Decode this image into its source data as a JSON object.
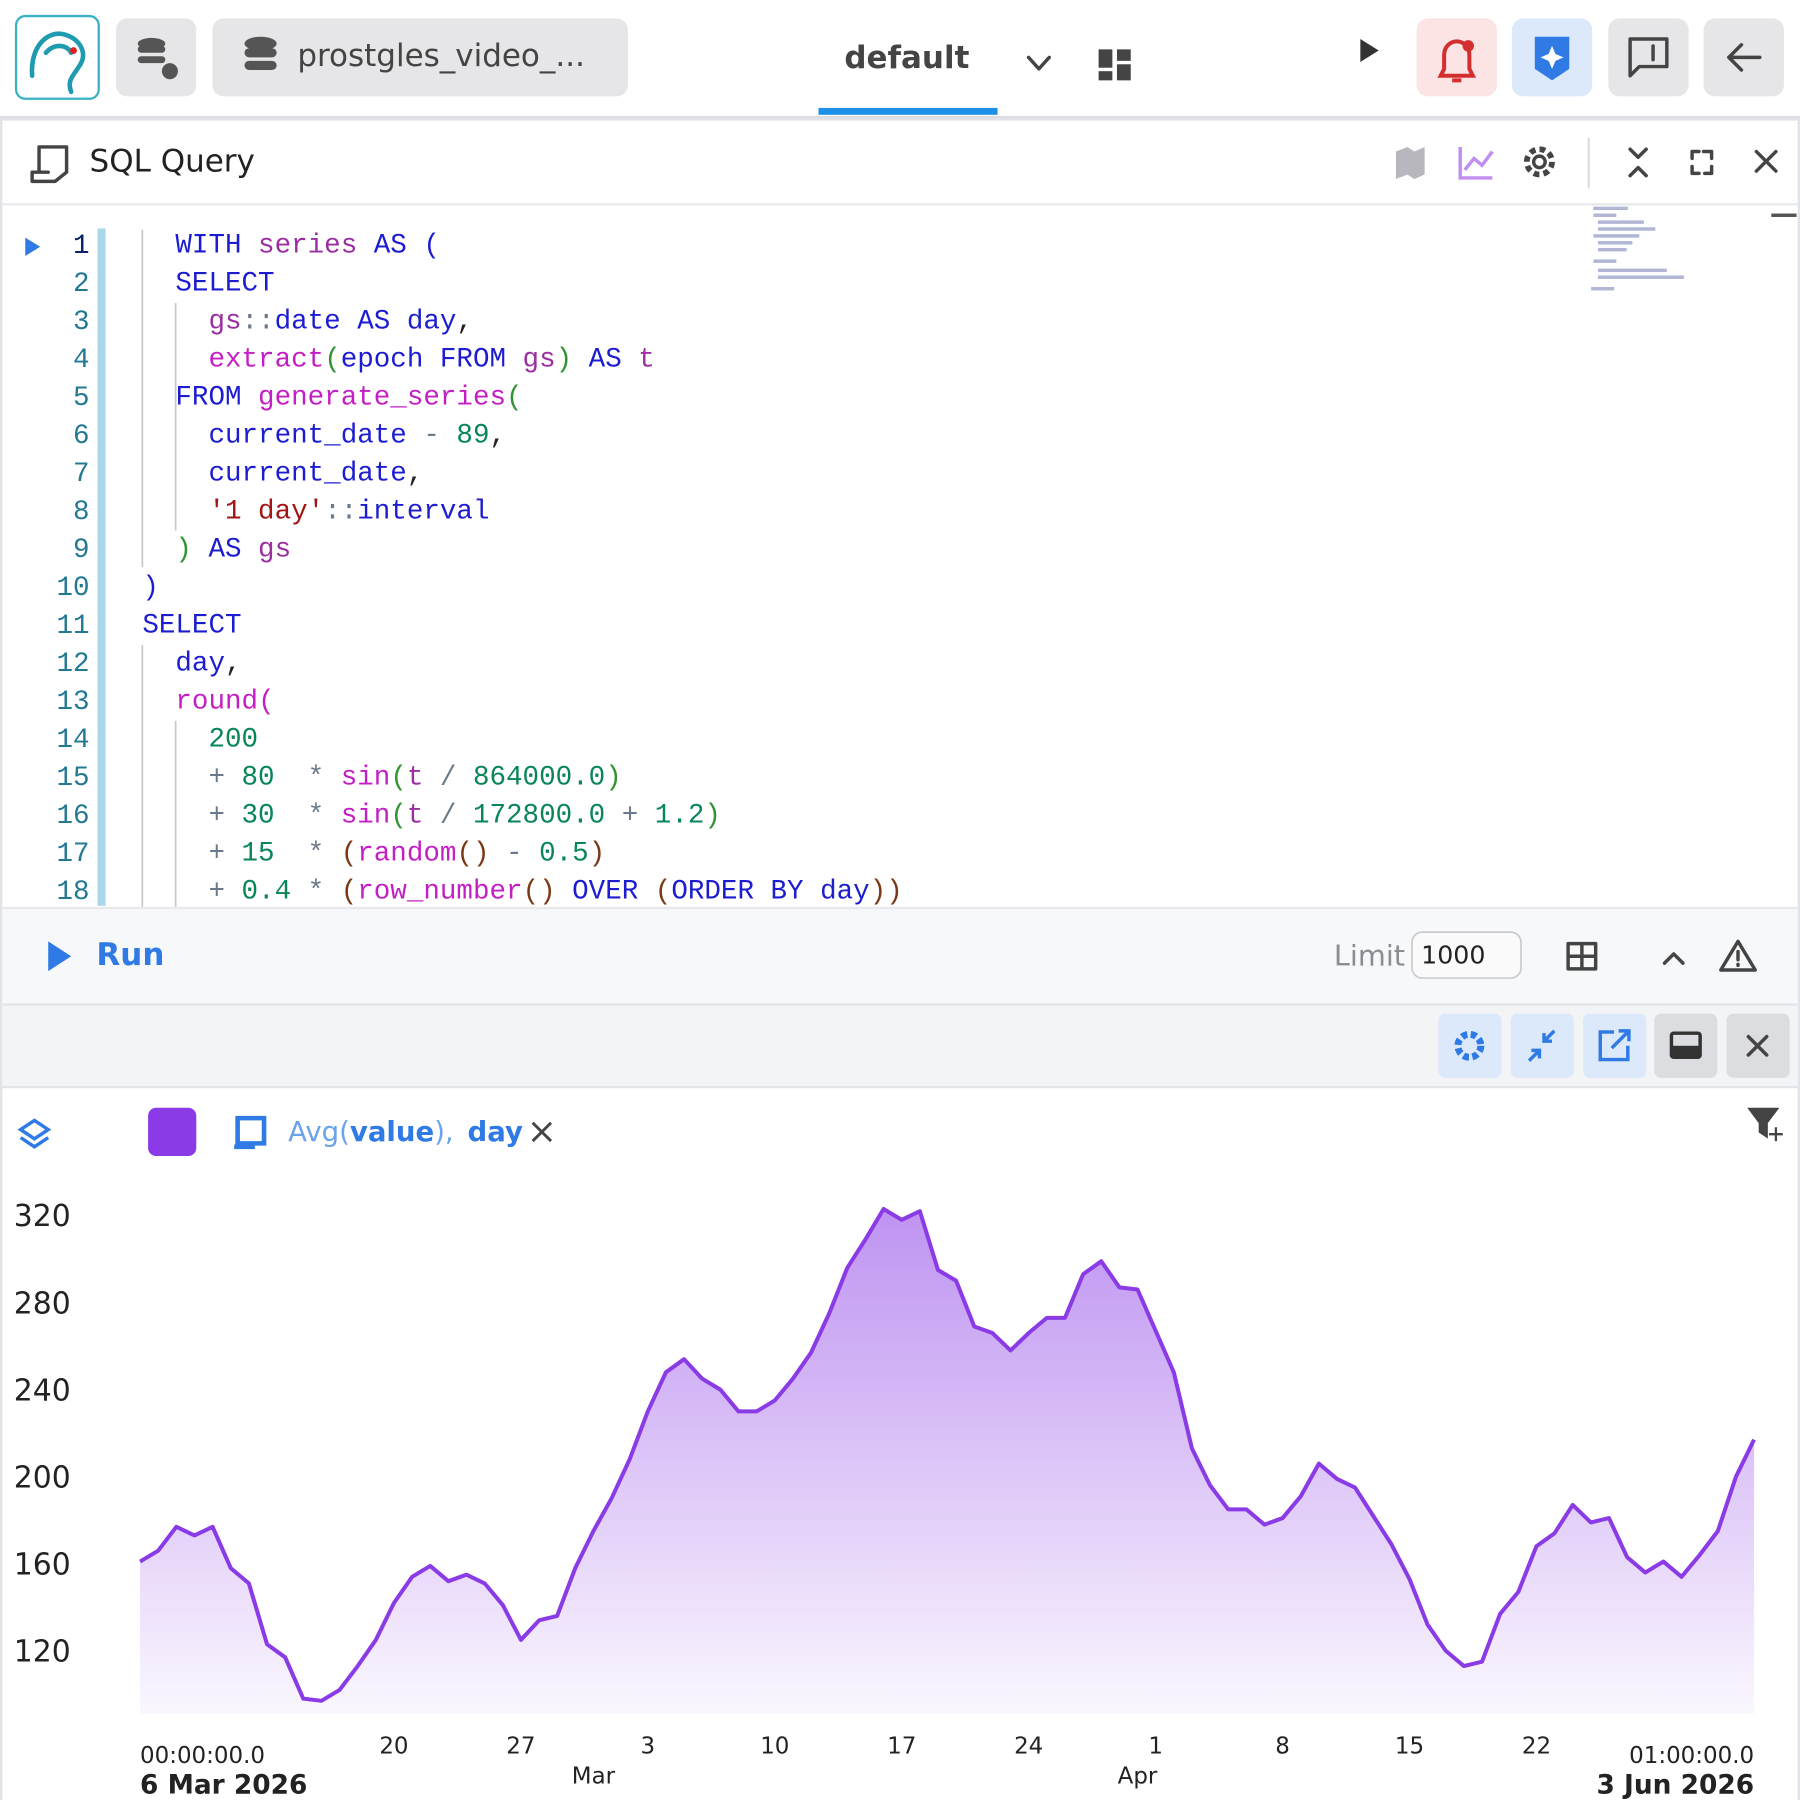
{
  "header": {
    "connection": "prostgles_video_...",
    "workspace": "default"
  },
  "panel": {
    "title": "SQL Query"
  },
  "editor": {
    "lines": [
      {
        "number": "1",
        "tokens": [
          {
            "text": "  WITH",
            "color": "#1c1cd1"
          },
          {
            "text": " series",
            "color": "#9b2fa0"
          },
          {
            "text": " AS",
            "color": "#1c1cd1"
          },
          {
            "text": " (",
            "color": "#1c1cd1"
          }
        ]
      },
      {
        "number": "2",
        "tokens": [
          {
            "text": "  SELECT",
            "color": "#1c1cd1"
          }
        ]
      },
      {
        "number": "3",
        "tokens": [
          {
            "text": "    gs",
            "color": "#9b2fa0"
          },
          {
            "text": "::",
            "color": "#6a7a8a"
          },
          {
            "text": "date",
            "color": "#1c1cd1"
          },
          {
            "text": " AS",
            "color": "#1c1cd1"
          },
          {
            "text": " day",
            "color": "#1c1cd1"
          },
          {
            "text": ",",
            "color": "#222222"
          }
        ]
      },
      {
        "number": "4",
        "tokens": [
          {
            "text": "    extract",
            "color": "#c41fc4"
          },
          {
            "text": "(",
            "color": "#319331"
          },
          {
            "text": "epoch",
            "color": "#1c1cd1"
          },
          {
            "text": " FROM",
            "color": "#1c1cd1"
          },
          {
            "text": " gs",
            "color": "#9b2fa0"
          },
          {
            "text": ")",
            "color": "#319331"
          },
          {
            "text": " AS",
            "color": "#1c1cd1"
          },
          {
            "text": " t",
            "color": "#9b2fa0"
          }
        ]
      },
      {
        "number": "5",
        "tokens": [
          {
            "text": "  FROM",
            "color": "#1c1cd1"
          },
          {
            "text": " generate_series",
            "color": "#c41fc4"
          },
          {
            "text": "(",
            "color": "#319331"
          }
        ]
      },
      {
        "number": "6",
        "tokens": [
          {
            "text": "    current_date",
            "color": "#1c1cd1"
          },
          {
            "text": " -",
            "color": "#6a7a8a"
          },
          {
            "text": " 89",
            "color": "#098658"
          },
          {
            "text": ",",
            "color": "#222222"
          }
        ]
      },
      {
        "number": "7",
        "tokens": [
          {
            "text": "    current_date",
            "color": "#1c1cd1"
          },
          {
            "text": ",",
            "color": "#222222"
          }
        ]
      },
      {
        "number": "8",
        "tokens": [
          {
            "text": "    '1 day'",
            "color": "#a31515"
          },
          {
            "text": "::",
            "color": "#6a7a8a"
          },
          {
            "text": "interval",
            "color": "#1c1cd1"
          }
        ]
      },
      {
        "number": "9",
        "tokens": [
          {
            "text": "  )",
            "color": "#319331"
          },
          {
            "text": " AS",
            "color": "#1c1cd1"
          },
          {
            "text": " gs",
            "color": "#9b2fa0"
          }
        ]
      },
      {
        "number": "10",
        "tokens": [
          {
            "text": ")",
            "color": "#1c1cd1"
          }
        ]
      },
      {
        "number": "11",
        "tokens": [
          {
            "text": "SELECT",
            "color": "#1c1cd1"
          }
        ]
      },
      {
        "number": "12",
        "tokens": [
          {
            "text": "  day",
            "color": "#1c1cd1"
          },
          {
            "text": ",",
            "color": "#222222"
          }
        ]
      },
      {
        "number": "13",
        "tokens": [
          {
            "text": "  round",
            "color": "#c41fc4"
          },
          {
            "text": "(",
            "color": "#c41fc4"
          }
        ]
      },
      {
        "number": "14",
        "tokens": [
          {
            "text": "    200",
            "color": "#098658"
          }
        ]
      },
      {
        "number": "15",
        "tokens": [
          {
            "text": "    +",
            "color": "#6a7a8a"
          },
          {
            "text": " 80",
            "color": "#098658"
          },
          {
            "text": "  *",
            "color": "#6a7a8a"
          },
          {
            "text": " sin",
            "color": "#c41fc4"
          },
          {
            "text": "(",
            "color": "#319331"
          },
          {
            "text": "t",
            "color": "#9b2fa0"
          },
          {
            "text": " /",
            "color": "#6a7a8a"
          },
          {
            "text": " 864000.0",
            "color": "#098658"
          },
          {
            "text": ")",
            "color": "#319331"
          }
        ]
      },
      {
        "number": "16",
        "tokens": [
          {
            "text": "    +",
            "color": "#6a7a8a"
          },
          {
            "text": " 30",
            "color": "#098658"
          },
          {
            "text": "  *",
            "color": "#6a7a8a"
          },
          {
            "text": " sin",
            "color": "#c41fc4"
          },
          {
            "text": "(",
            "color": "#319331"
          },
          {
            "text": "t",
            "color": "#9b2fa0"
          },
          {
            "text": " /",
            "color": "#6a7a8a"
          },
          {
            "text": " 172800.0",
            "color": "#098658"
          },
          {
            "text": " +",
            "color": "#6a7a8a"
          },
          {
            "text": " 1.2",
            "color": "#098658"
          },
          {
            "text": ")",
            "color": "#319331"
          }
        ]
      },
      {
        "number": "17",
        "tokens": [
          {
            "text": "    +",
            "color": "#6a7a8a"
          },
          {
            "text": " 15",
            "color": "#098658"
          },
          {
            "text": "  *",
            "color": "#6a7a8a"
          },
          {
            "text": " (",
            "color": "#7b3814"
          },
          {
            "text": "random",
            "color": "#c41fc4"
          },
          {
            "text": "()",
            "color": "#7b3814"
          },
          {
            "text": " -",
            "color": "#6a7a8a"
          },
          {
            "text": " 0.5",
            "color": "#098658"
          },
          {
            "text": ")",
            "color": "#7b3814"
          }
        ]
      },
      {
        "number": "18",
        "tokens": [
          {
            "text": "    +",
            "color": "#6a7a8a"
          },
          {
            "text": " 0.4",
            "color": "#098658"
          },
          {
            "text": " *",
            "color": "#6a7a8a"
          },
          {
            "text": " (",
            "color": "#7b3814"
          },
          {
            "text": "row_number",
            "color": "#c41fc4"
          },
          {
            "text": "()",
            "color": "#7b3814"
          },
          {
            "text": " OVER",
            "color": "#1c1cd1"
          },
          {
            "text": " (",
            "color": "#7b3814"
          },
          {
            "text": "ORDER BY",
            "color": "#1c1cd1"
          },
          {
            "text": " day",
            "color": "#1c1cd1"
          },
          {
            "text": "))",
            "color": "#7b3814"
          }
        ]
      }
    ]
  },
  "run_bar": {
    "run": "Run",
    "limit_label": "Limit",
    "limit_value": "1000"
  },
  "layer": {
    "agg": "Avg(",
    "column": "value",
    "separator": "),",
    "x_column": "day"
  },
  "chart_data": {
    "type": "area",
    "color": "#8a3be6",
    "values": [
      162,
      167,
      178,
      174,
      178,
      159,
      152,
      124,
      118,
      99,
      98,
      103,
      114,
      126,
      143,
      155,
      160,
      153,
      156,
      152,
      142,
      126,
      135,
      137,
      159,
      176,
      191,
      209,
      231,
      249,
      255,
      246,
      241,
      231,
      231,
      236,
      246,
      258,
      276,
      297,
      310,
      324,
      319,
      323,
      296,
      291,
      270,
      267,
      259,
      267,
      274,
      274,
      294,
      300,
      288,
      287,
      268,
      249,
      214,
      197,
      186,
      186,
      179,
      182,
      192,
      207,
      200,
      196,
      183,
      170,
      154,
      133,
      121,
      114,
      116,
      138,
      148,
      169,
      175,
      188,
      180,
      182,
      164,
      157,
      162,
      155,
      165,
      176,
      201,
      218
    ],
    "ylim": [
      92,
      332
    ],
    "yticks": [
      120,
      160,
      200,
      240,
      280,
      320
    ],
    "xlim": [
      0,
      89
    ],
    "xticks": [
      {
        "value": 0,
        "label": "00:00:00.0"
      },
      {
        "value": 14,
        "label": "20"
      },
      {
        "value": 21,
        "label": "27"
      },
      {
        "value": 28,
        "label": "3"
      },
      {
        "value": 35,
        "label": "10"
      },
      {
        "value": 42,
        "label": "17"
      },
      {
        "value": 49,
        "label": "24"
      },
      {
        "value": 56,
        "label": "1"
      },
      {
        "value": 63,
        "label": "8"
      },
      {
        "value": 70,
        "label": "15"
      },
      {
        "value": 77,
        "label": "22"
      },
      {
        "value": 89,
        "label": "01:00:00.0"
      }
    ],
    "xticks_secondary": [
      {
        "value": 0,
        "label": "6 Mar 2026"
      },
      {
        "value": 25,
        "label": "Mar"
      },
      {
        "value": 55,
        "label": "Apr"
      },
      {
        "value": 89,
        "label": "3 Jun 2026"
      }
    ],
    "grid": false
  }
}
